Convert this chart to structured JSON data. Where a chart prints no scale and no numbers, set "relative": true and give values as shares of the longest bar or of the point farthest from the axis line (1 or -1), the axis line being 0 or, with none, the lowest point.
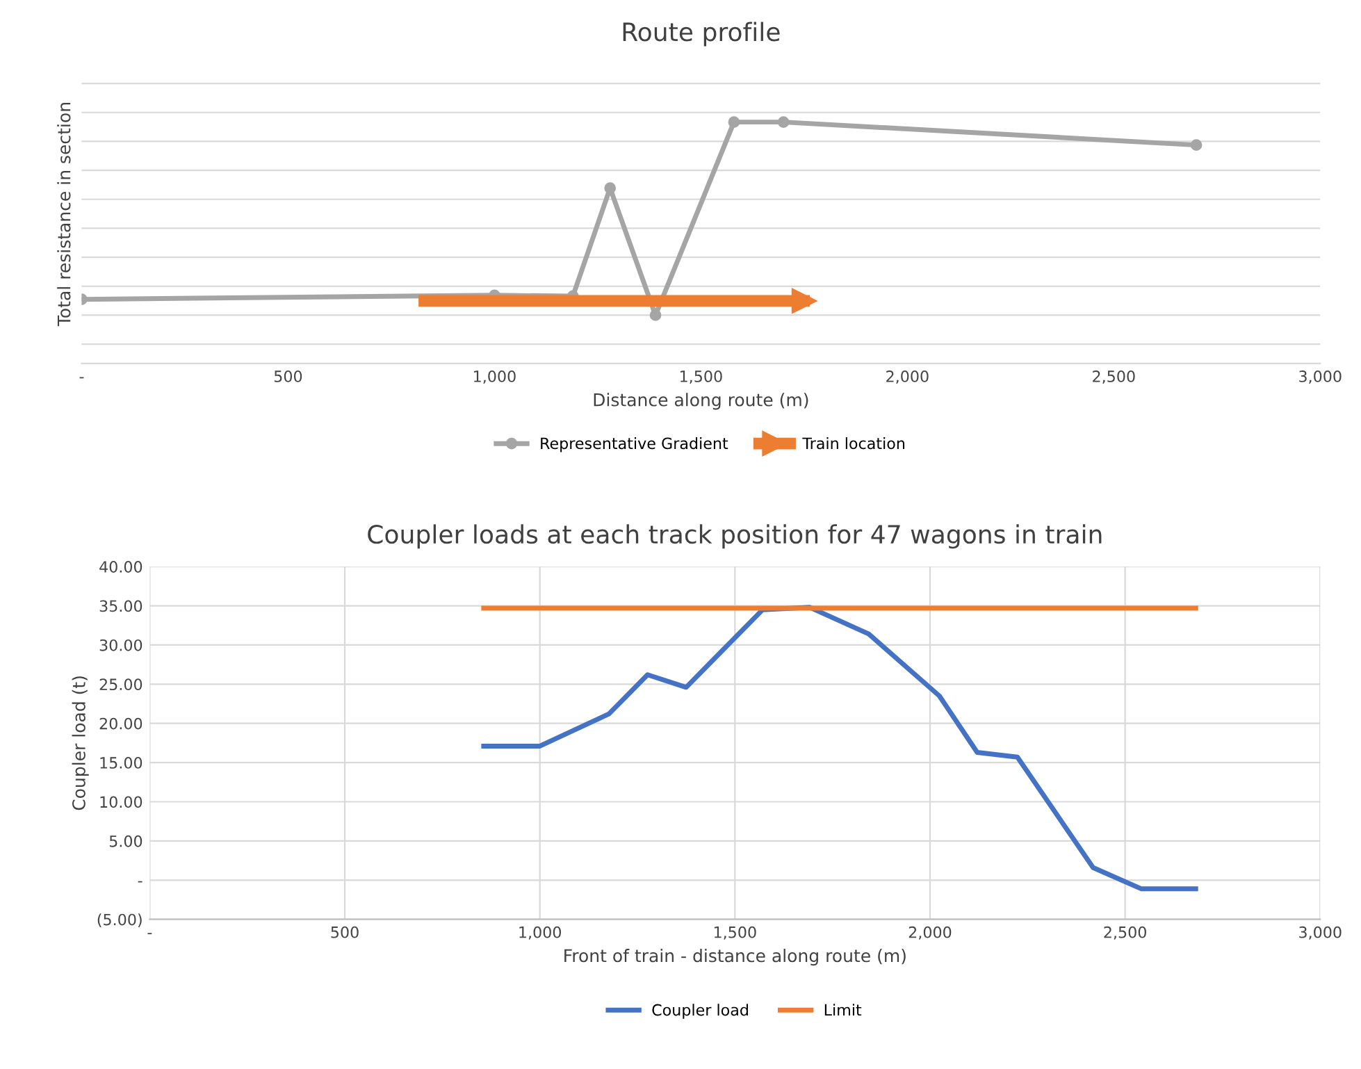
{
  "chart_data": [
    {
      "type": "line",
      "title": "Route profile",
      "xlabel": "Distance along route (m)",
      "ylabel": "Total resistance in section",
      "relative": true,
      "xlim": [
        0,
        3000
      ],
      "xticks": [
        {
          "value": 0,
          "label": "-"
        },
        500,
        {
          "value": 1000,
          "label": "1,000"
        },
        {
          "value": 1500,
          "label": "1,500"
        },
        {
          "value": 2000,
          "label": "2,000"
        },
        {
          "value": 2500,
          "label": "2,500"
        },
        {
          "value": 3000,
          "label": "3,000"
        }
      ],
      "tick_labels": "x",
      "grid": "y",
      "legend": "bottom",
      "series": [
        {
          "name": "Representative Gradient",
          "color": "#a5a5a5",
          "marker": "circle",
          "x": [
            0,
            1000,
            1190,
            1280,
            1390,
            1580,
            1700,
            2700
          ],
          "values": [
            0.082,
            0.103,
            0.099,
            0.658,
            0,
            1,
            1,
            0.881
          ]
        },
        {
          "name": "Train location",
          "color": "#ed7d31",
          "marker": "triangle",
          "x": [
            830,
            1750
          ],
          "values": [
            0.074,
            0.074
          ]
        }
      ]
    },
    {
      "type": "line",
      "title": "Coupler loads at each track position for 47 wagons in train",
      "xlabel": "Front of train - distance along route (m)",
      "ylabel": "Coupler load (t)",
      "xlim": [
        0,
        3000
      ],
      "xticks": [
        {
          "value": 0,
          "label": "-"
        },
        500,
        {
          "value": 1000,
          "label": "1,000"
        },
        {
          "value": 1500,
          "label": "1,500"
        },
        {
          "value": 2000,
          "label": "2,000"
        },
        {
          "value": 2500,
          "label": "2,500"
        },
        {
          "value": 3000,
          "label": "3,000"
        }
      ],
      "ylim": [
        -5,
        40
      ],
      "yticks": [
        {
          "value": -5,
          "label": "(5.00)"
        },
        {
          "value": 0,
          "label": "-"
        },
        {
          "value": 5,
          "label": "5.00"
        },
        {
          "value": 10,
          "label": "10.00"
        },
        {
          "value": 15,
          "label": "15.00"
        },
        {
          "value": 20,
          "label": "20.00"
        },
        {
          "value": 25,
          "label": "25.00"
        },
        {
          "value": 30,
          "label": "30.00"
        },
        {
          "value": 35,
          "label": "35.00"
        },
        {
          "value": 40,
          "label": "40.00"
        }
      ],
      "grid": true,
      "legend": "bottom",
      "series": [
        {
          "name": "Coupler load",
          "color": "#4472c4",
          "x": [
            856,
            1000,
            1177,
            1276,
            1375,
            1571,
            1692,
            1843,
            2024,
            2121,
            2224,
            2418,
            2541,
            2681
          ],
          "values": [
            17.1,
            17.1,
            21.2,
            26.2,
            24.6,
            34.5,
            34.8,
            31.4,
            23.5,
            16.3,
            15.7,
            1.6,
            -1.1,
            -1.1
          ]
        },
        {
          "name": "Limit",
          "color": "#ed7d31",
          "x": [
            856,
            2681
          ],
          "values": [
            34.7,
            34.7
          ]
        }
      ]
    }
  ]
}
